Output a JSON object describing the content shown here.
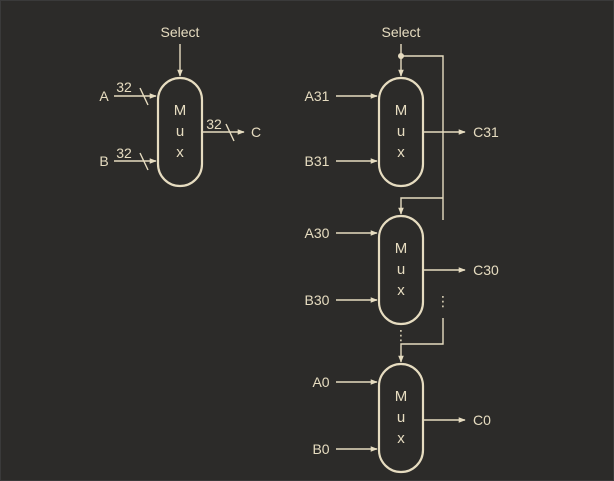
{
  "left": {
    "select_label": "Select",
    "input_a": "A",
    "input_b": "B",
    "output": "C",
    "width_a": "32",
    "width_b": "32",
    "width_c": "32",
    "mux_letters": [
      "M",
      "u",
      "x"
    ]
  },
  "right": {
    "select_label": "Select",
    "mux_letters": [
      "M",
      "u",
      "x"
    ],
    "stages": [
      {
        "input_a": "A31",
        "input_b": "B31",
        "output": "C31"
      },
      {
        "input_a": "A30",
        "input_b": "B30",
        "output": "C30"
      },
      {
        "input_a": "A0",
        "input_b": "B0",
        "output": "C0"
      }
    ],
    "ellipsis": "⋮"
  },
  "colors": {
    "background": "#2c2b29",
    "stroke": "#e6dcc0"
  }
}
